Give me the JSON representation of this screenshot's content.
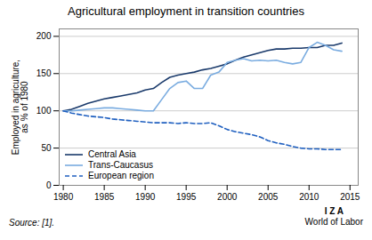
{
  "chart_data": {
    "type": "line",
    "title": "Agricultural employment in transition countries",
    "ylabel": "Employed in agriculture,\nas % of 1980",
    "annotations": [
      "Source: [1].",
      "I  Z  A",
      "World of Labor"
    ],
    "x": [
      1980,
      1981,
      1982,
      1983,
      1984,
      1985,
      1986,
      1987,
      1988,
      1989,
      1990,
      1991,
      1992,
      1993,
      1994,
      1995,
      1996,
      1997,
      1998,
      1999,
      2000,
      2001,
      2002,
      2003,
      2004,
      2005,
      2006,
      2007,
      2008,
      2009,
      2010,
      2011,
      2012,
      2013,
      2014
    ],
    "series": [
      {
        "name": "Central Asia",
        "color": "#1a3a6b",
        "line_style": "solid",
        "values": [
          100,
          102,
          106,
          110,
          113,
          116,
          118,
          120,
          122,
          124,
          128,
          130,
          138,
          145,
          148,
          150,
          152,
          155,
          157,
          160,
          163,
          168,
          172,
          175,
          178,
          181,
          183,
          183,
          184,
          184,
          185,
          185,
          188,
          188,
          191
        ]
      },
      {
        "name": "Trans-Caucasus",
        "color": "#7aace0",
        "line_style": "solid",
        "values": [
          100,
          100,
          101,
          102,
          103,
          104,
          104,
          103,
          102,
          101,
          100,
          100,
          115,
          130,
          138,
          140,
          130,
          130,
          148,
          152,
          165,
          168,
          170,
          167,
          168,
          167,
          168,
          165,
          163,
          165,
          185,
          192,
          188,
          182,
          180
        ]
      },
      {
        "name": "European region",
        "color": "#2060c0",
        "line_style": "dashed",
        "values": [
          100,
          97,
          95,
          93,
          92,
          91,
          89,
          88,
          87,
          86,
          85,
          84,
          84,
          84,
          83,
          84,
          83,
          83,
          84,
          80,
          75,
          72,
          70,
          68,
          65,
          60,
          57,
          55,
          52,
          50,
          49,
          49,
          48,
          48,
          48
        ]
      }
    ],
    "xlim": [
      1979.5,
      2016
    ],
    "xticks": [
      1980,
      1985,
      1990,
      1995,
      2000,
      2005,
      2010,
      2015
    ],
    "ylim": [
      0,
      210
    ],
    "yticks": [
      0,
      50,
      100,
      150,
      200
    ],
    "grid": true,
    "legend": "lower left"
  }
}
